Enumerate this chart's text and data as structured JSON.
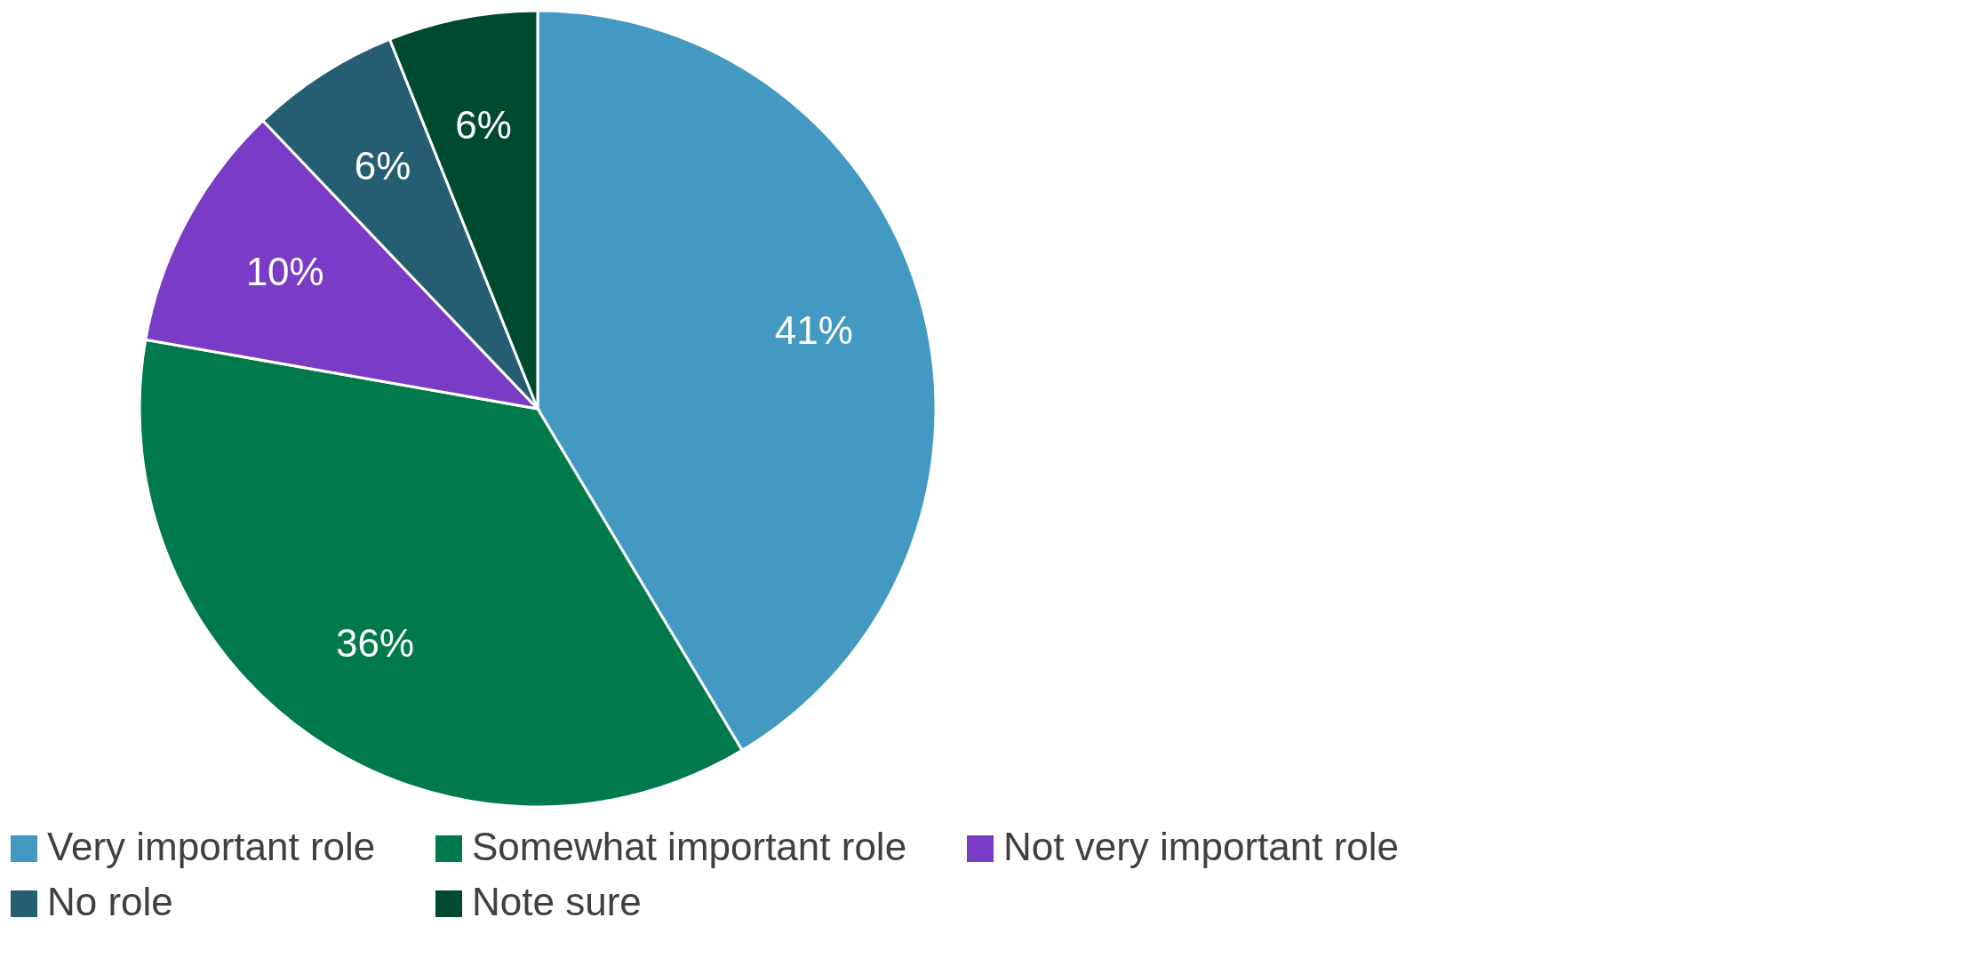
{
  "chart_data": {
    "type": "pie",
    "categories": [
      "Very important role",
      "Somewhat important role",
      "Not very important role",
      "No role",
      "Note sure"
    ],
    "values": [
      41,
      36,
      10,
      6,
      6
    ],
    "colors": [
      "#4399c1",
      "#007a4d",
      "#7a3bc6",
      "#255d73",
      "#004a2f"
    ],
    "value_labels": [
      "41%",
      "36%",
      "10%",
      "6%",
      "6%"
    ],
    "legend": "bottom"
  }
}
